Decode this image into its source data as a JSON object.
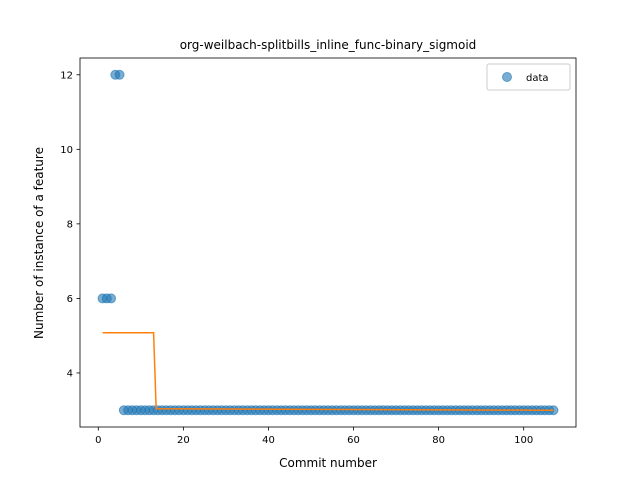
{
  "chart_data": {
    "type": "scatter",
    "title": "org-weilbach-splitbills_inline_func-binary_sigmoid",
    "xlabel": "Commit number",
    "ylabel": "Number of instance of a feature",
    "xlim": [
      -4.3,
      112.3
    ],
    "ylim": [
      2.55,
      12.45
    ],
    "xticks": [
      0,
      20,
      40,
      60,
      80,
      100
    ],
    "yticks": [
      4,
      6,
      8,
      10,
      12
    ],
    "grid": false,
    "legend": {
      "position": "top-right",
      "entries": [
        "data"
      ]
    },
    "colors": {
      "data": "#1f77b4",
      "fit": "#ff7f0e"
    },
    "series": [
      {
        "name": "data",
        "kind": "scatter",
        "x": [
          1,
          2,
          3,
          4,
          5,
          6,
          7,
          8,
          9,
          10,
          11,
          12,
          13,
          14,
          15,
          16,
          17,
          18,
          19,
          20,
          21,
          22,
          23,
          24,
          25,
          26,
          27,
          28,
          29,
          30,
          31,
          32,
          33,
          34,
          35,
          36,
          37,
          38,
          39,
          40,
          41,
          42,
          43,
          44,
          45,
          46,
          47,
          48,
          49,
          50,
          51,
          52,
          53,
          54,
          55,
          56,
          57,
          58,
          59,
          60,
          61,
          62,
          63,
          64,
          65,
          66,
          67,
          68,
          69,
          70,
          71,
          72,
          73,
          74,
          75,
          76,
          77,
          78,
          79,
          80,
          81,
          82,
          83,
          84,
          85,
          86,
          87,
          88,
          89,
          90,
          91,
          92,
          93,
          94,
          95,
          96,
          97,
          98,
          99,
          100,
          101,
          102,
          103,
          104,
          105,
          106,
          107
        ],
        "y": [
          6,
          6,
          6,
          12,
          12,
          3,
          3,
          3,
          3,
          3,
          3,
          3,
          3,
          3,
          3,
          3,
          3,
          3,
          3,
          3,
          3,
          3,
          3,
          3,
          3,
          3,
          3,
          3,
          3,
          3,
          3,
          3,
          3,
          3,
          3,
          3,
          3,
          3,
          3,
          3,
          3,
          3,
          3,
          3,
          3,
          3,
          3,
          3,
          3,
          3,
          3,
          3,
          3,
          3,
          3,
          3,
          3,
          3,
          3,
          3,
          3,
          3,
          3,
          3,
          3,
          3,
          3,
          3,
          3,
          3,
          3,
          3,
          3,
          3,
          3,
          3,
          3,
          3,
          3,
          3,
          3,
          3,
          3,
          3,
          3,
          3,
          3,
          3,
          3,
          3,
          3,
          3,
          3,
          3,
          3,
          3,
          3,
          3,
          3,
          3,
          3,
          3,
          3,
          3,
          3,
          3,
          3
        ]
      },
      {
        "kind": "line",
        "x": [
          1,
          13,
          13.6,
          107
        ],
        "y": [
          5.08,
          5.08,
          3.04,
          3.0
        ]
      }
    ]
  }
}
